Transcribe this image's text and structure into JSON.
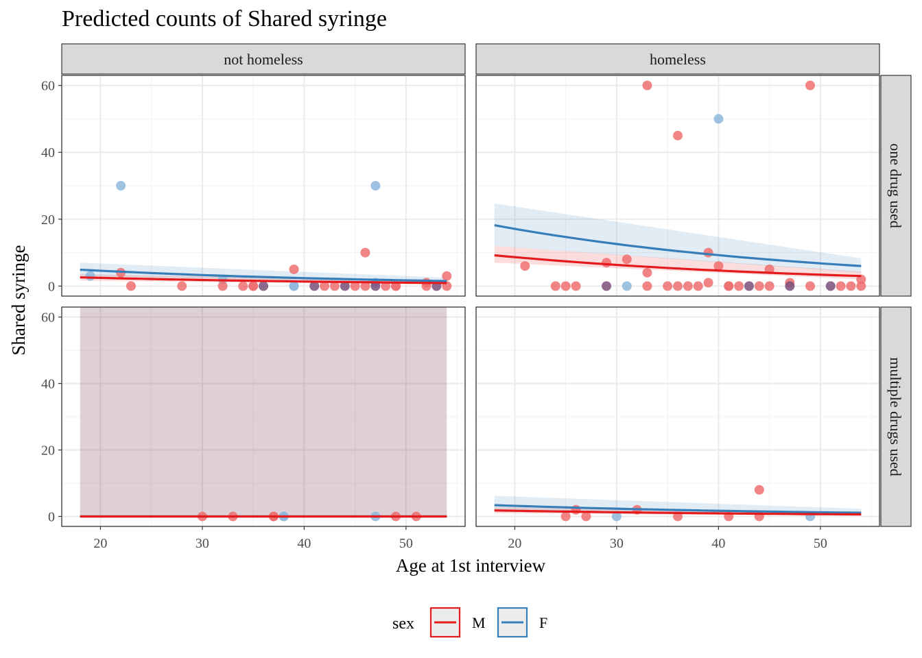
{
  "chart_data": {
    "type": "scatter",
    "title": "Predicted counts of Shared syringe",
    "xlabel": "Age at 1st interview",
    "ylabel": "Shared syringe",
    "xlim": [
      16.2,
      55.8
    ],
    "ylim": [
      -3,
      63
    ],
    "x_ticks": [
      20,
      30,
      40,
      50
    ],
    "y_ticks": [
      0,
      20,
      40,
      60
    ],
    "col_facets": [
      "not homeless",
      "homeless"
    ],
    "row_facets": [
      "one drug used",
      "multiple drugs used"
    ],
    "legend": {
      "title": "sex",
      "position": "bottom",
      "entries": [
        {
          "label": "M",
          "color": "#e41a1c"
        },
        {
          "label": "F",
          "color": "#377eb8"
        }
      ]
    },
    "grid": true,
    "colors": {
      "M": "#e41a1c",
      "F": "#377eb8",
      "M_points": "#ee6f70",
      "F_points": "#8fb7dc",
      "overlap_points": "#7a4f7a",
      "wide_band": "#ddcdd7"
    },
    "panels": [
      {
        "col": "not homeless",
        "row": "one drug used",
        "series": [
          {
            "sex": "M",
            "fit_x": [
              18,
              54
            ],
            "fit_y": [
              2.6,
              0.9
            ],
            "ci_lower": [
              1.6,
              0.5
            ],
            "ci_upper": [
              3.6,
              1.5
            ]
          },
          {
            "sex": "F",
            "fit_x": [
              18,
              54
            ],
            "fit_y": [
              4.9,
              1.5
            ],
            "ci_lower": [
              3.0,
              0.8
            ],
            "ci_upper": [
              7.0,
              2.5
            ]
          }
        ],
        "points": [
          {
            "x": 19,
            "y": 3,
            "sex": "F"
          },
          {
            "x": 22,
            "y": 30,
            "sex": "F"
          },
          {
            "x": 22,
            "y": 4,
            "sex": "M"
          },
          {
            "x": 23,
            "y": 0,
            "sex": "M"
          },
          {
            "x": 28,
            "y": 0,
            "sex": "M"
          },
          {
            "x": 32,
            "y": 2,
            "sex": "F"
          },
          {
            "x": 32,
            "y": 0,
            "sex": "M"
          },
          {
            "x": 34,
            "y": 0,
            "sex": "M"
          },
          {
            "x": 35,
            "y": 0,
            "sex": "M"
          },
          {
            "x": 35,
            "y": 0,
            "sex": "M"
          },
          {
            "x": 36,
            "y": 0,
            "sex": "both"
          },
          {
            "x": 39,
            "y": 5,
            "sex": "M"
          },
          {
            "x": 39,
            "y": 0,
            "sex": "F"
          },
          {
            "x": 39,
            "y": 0,
            "sex": "F"
          },
          {
            "x": 41,
            "y": 0,
            "sex": "both"
          },
          {
            "x": 42,
            "y": 0,
            "sex": "M"
          },
          {
            "x": 43,
            "y": 0,
            "sex": "M"
          },
          {
            "x": 44,
            "y": 0,
            "sex": "both"
          },
          {
            "x": 45,
            "y": 0,
            "sex": "M"
          },
          {
            "x": 46,
            "y": 10,
            "sex": "M"
          },
          {
            "x": 46,
            "y": 0,
            "sex": "M"
          },
          {
            "x": 47,
            "y": 30,
            "sex": "F"
          },
          {
            "x": 47,
            "y": 1,
            "sex": "F"
          },
          {
            "x": 47,
            "y": 0,
            "sex": "both"
          },
          {
            "x": 48,
            "y": 0,
            "sex": "M"
          },
          {
            "x": 49,
            "y": 0,
            "sex": "M"
          },
          {
            "x": 49,
            "y": 0,
            "sex": "M"
          },
          {
            "x": 52,
            "y": 1,
            "sex": "M"
          },
          {
            "x": 52,
            "y": 0,
            "sex": "M"
          },
          {
            "x": 53,
            "y": 0,
            "sex": "both"
          },
          {
            "x": 54,
            "y": 3,
            "sex": "M"
          },
          {
            "x": 54,
            "y": 0,
            "sex": "M"
          }
        ]
      },
      {
        "col": "homeless",
        "row": "one drug used",
        "series": [
          {
            "sex": "M",
            "fit_x": [
              18,
              54
            ],
            "fit_y": [
              9.2,
              3.0
            ],
            "ci_lower": [
              7.0,
              2.0
            ],
            "ci_upper": [
              12.0,
              4.3
            ]
          },
          {
            "sex": "F",
            "fit_x": [
              18,
              54
            ],
            "fit_y": [
              18.2,
              6.0
            ],
            "ci_lower": [
              12.0,
              4.0
            ],
            "ci_upper": [
              24.7,
              8.3
            ]
          }
        ],
        "points": [
          {
            "x": 21,
            "y": 6,
            "sex": "M"
          },
          {
            "x": 24,
            "y": 0,
            "sex": "M"
          },
          {
            "x": 25,
            "y": 0,
            "sex": "M"
          },
          {
            "x": 26,
            "y": 0,
            "sex": "M"
          },
          {
            "x": 29,
            "y": 7,
            "sex": "M"
          },
          {
            "x": 29,
            "y": 0,
            "sex": "both"
          },
          {
            "x": 31,
            "y": 8,
            "sex": "M"
          },
          {
            "x": 31,
            "y": 0,
            "sex": "F"
          },
          {
            "x": 33,
            "y": 60,
            "sex": "M"
          },
          {
            "x": 33,
            "y": 4,
            "sex": "M"
          },
          {
            "x": 33,
            "y": 0,
            "sex": "M"
          },
          {
            "x": 35,
            "y": 0,
            "sex": "M"
          },
          {
            "x": 36,
            "y": 45,
            "sex": "M"
          },
          {
            "x": 36,
            "y": 0,
            "sex": "M"
          },
          {
            "x": 37,
            "y": 0,
            "sex": "M"
          },
          {
            "x": 38,
            "y": 0,
            "sex": "M"
          },
          {
            "x": 39,
            "y": 10,
            "sex": "M"
          },
          {
            "x": 39,
            "y": 1,
            "sex": "M"
          },
          {
            "x": 40,
            "y": 50,
            "sex": "F"
          },
          {
            "x": 40,
            "y": 6,
            "sex": "M"
          },
          {
            "x": 41,
            "y": 0,
            "sex": "M"
          },
          {
            "x": 41,
            "y": 0,
            "sex": "M"
          },
          {
            "x": 42,
            "y": 0,
            "sex": "M"
          },
          {
            "x": 43,
            "y": 0,
            "sex": "both"
          },
          {
            "x": 44,
            "y": 0,
            "sex": "M"
          },
          {
            "x": 45,
            "y": 5,
            "sex": "M"
          },
          {
            "x": 45,
            "y": 0,
            "sex": "M"
          },
          {
            "x": 47,
            "y": 1,
            "sex": "M"
          },
          {
            "x": 47,
            "y": 0,
            "sex": "both"
          },
          {
            "x": 49,
            "y": 60,
            "sex": "M"
          },
          {
            "x": 49,
            "y": 0,
            "sex": "M"
          },
          {
            "x": 51,
            "y": 0,
            "sex": "both"
          },
          {
            "x": 52,
            "y": 0,
            "sex": "M"
          },
          {
            "x": 53,
            "y": 0,
            "sex": "M"
          },
          {
            "x": 54,
            "y": 2,
            "sex": "M"
          },
          {
            "x": 54,
            "y": 0,
            "sex": "M"
          }
        ]
      },
      {
        "col": "not homeless",
        "row": "multiple drugs used",
        "series": [
          {
            "sex": "M",
            "fit_x": [
              18,
              54
            ],
            "fit_y": [
              0,
              0
            ],
            "ci_lower": [
              0,
              0
            ],
            "ci_upper": [
              63,
              63
            ]
          },
          {
            "sex": "F",
            "fit_x": [
              18,
              54
            ],
            "fit_y": [
              0,
              0
            ],
            "ci_lower": [
              0,
              0
            ],
            "ci_upper": [
              63,
              63
            ]
          }
        ],
        "points": [
          {
            "x": 30,
            "y": 0,
            "sex": "M"
          },
          {
            "x": 33,
            "y": 0,
            "sex": "M"
          },
          {
            "x": 37,
            "y": 0,
            "sex": "M"
          },
          {
            "x": 37,
            "y": 0,
            "sex": "M"
          },
          {
            "x": 38,
            "y": 0,
            "sex": "F"
          },
          {
            "x": 38,
            "y": 0,
            "sex": "F"
          },
          {
            "x": 47,
            "y": 0,
            "sex": "F"
          },
          {
            "x": 49,
            "y": 0,
            "sex": "M"
          },
          {
            "x": 51,
            "y": 0,
            "sex": "M"
          }
        ]
      },
      {
        "col": "homeless",
        "row": "multiple drugs used",
        "series": [
          {
            "sex": "M",
            "fit_x": [
              18,
              54
            ],
            "fit_y": [
              1.8,
              0.6
            ],
            "ci_lower": [
              1.0,
              0.2
            ],
            "ci_upper": [
              2.8,
              1.2
            ]
          },
          {
            "sex": "F",
            "fit_x": [
              18,
              54
            ],
            "fit_y": [
              3.4,
              1.1
            ],
            "ci_lower": [
              1.8,
              0.4
            ],
            "ci_upper": [
              6.2,
              2.3
            ]
          }
        ],
        "points": [
          {
            "x": 25,
            "y": 0,
            "sex": "M"
          },
          {
            "x": 26,
            "y": 2,
            "sex": "M"
          },
          {
            "x": 27,
            "y": 0,
            "sex": "M"
          },
          {
            "x": 30,
            "y": 0,
            "sex": "F"
          },
          {
            "x": 32,
            "y": 2,
            "sex": "M"
          },
          {
            "x": 36,
            "y": 0,
            "sex": "M"
          },
          {
            "x": 41,
            "y": 0,
            "sex": "M"
          },
          {
            "x": 44,
            "y": 8,
            "sex": "M"
          },
          {
            "x": 44,
            "y": 0,
            "sex": "M"
          },
          {
            "x": 49,
            "y": 0,
            "sex": "F"
          }
        ]
      }
    ]
  }
}
